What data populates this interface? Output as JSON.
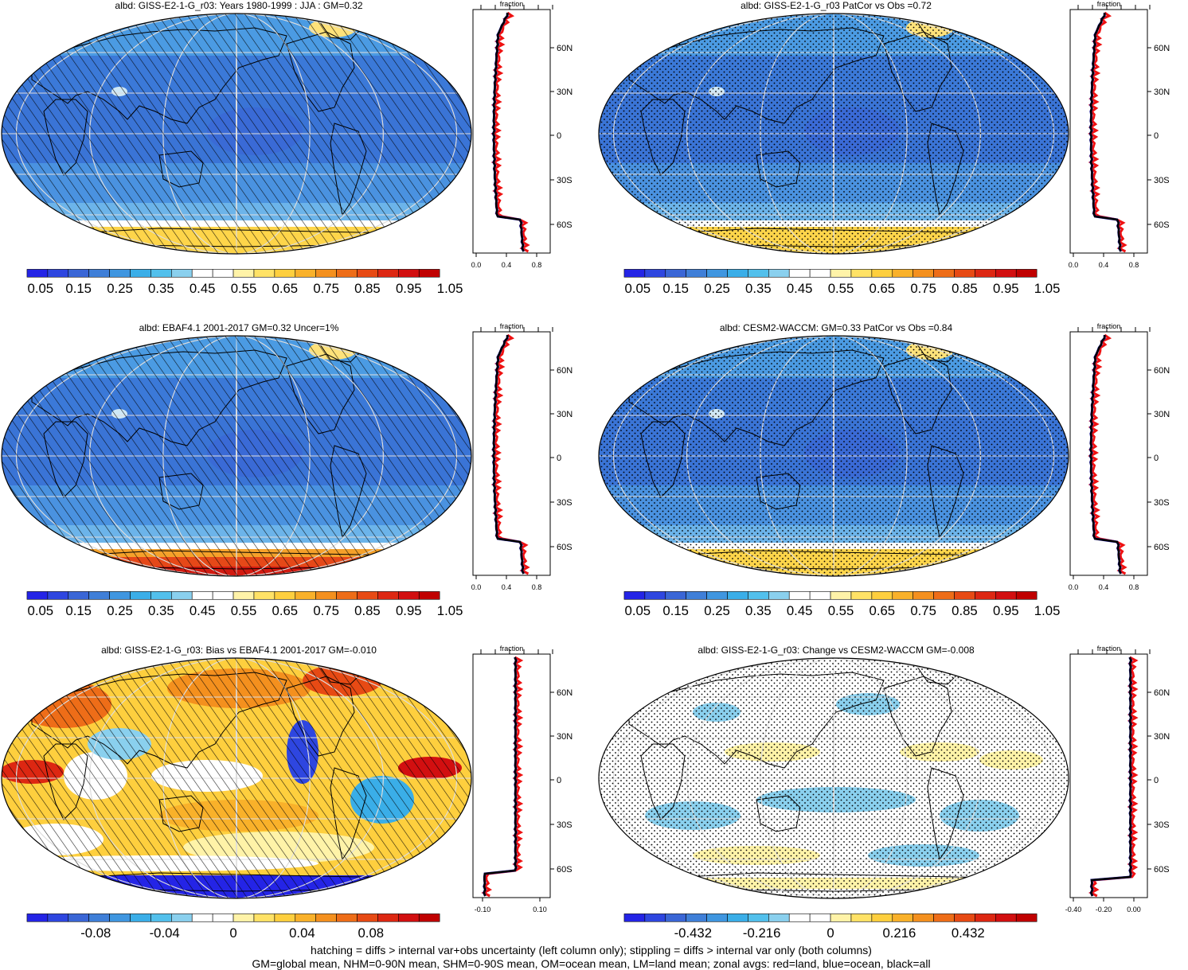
{
  "panels": [
    {
      "title": "albd: GISS-E2-1-G_r03: Years 1980-1999 : JJA : GM=0.32",
      "variant": "model",
      "overlay": "hatch",
      "zonal": {
        "label": "fraction",
        "xticks": [
          "0.0",
          "0.4",
          "0.8"
        ],
        "yticks": [
          "60N",
          "30N",
          "0",
          "30S",
          "60S"
        ]
      },
      "colorbar": {
        "labels": [
          "0.05",
          "0.15",
          "0.25",
          "0.35",
          "0.45",
          "0.55",
          "0.65",
          "0.75",
          "0.85",
          "0.95",
          "1.05"
        ]
      }
    },
    {
      "title": "albd: GISS-E2-1-G_r03 PatCor vs Obs =0.72",
      "variant": "model",
      "overlay": "stipple",
      "zonal": {
        "label": "fraction",
        "xticks": [
          "0.0",
          "0.4",
          "0.8"
        ],
        "yticks": [
          "60N",
          "30N",
          "0",
          "30S",
          "60S"
        ]
      },
      "colorbar": {
        "labels": [
          "0.05",
          "0.15",
          "0.25",
          "0.35",
          "0.45",
          "0.55",
          "0.65",
          "0.75",
          "0.85",
          "0.95",
          "1.05"
        ]
      }
    },
    {
      "title": "albd: EBAF4.1 2001-2017 GM=0.32 Uncer=1%",
      "variant": "obs",
      "overlay": "hatch",
      "zonal": {
        "label": "fraction",
        "xticks": [
          "0.0",
          "0.4",
          "0.8"
        ],
        "yticks": [
          "60N",
          "30N",
          "0",
          "30S",
          "60S"
        ]
      },
      "colorbar": {
        "labels": [
          "0.05",
          "0.15",
          "0.25",
          "0.35",
          "0.45",
          "0.55",
          "0.65",
          "0.75",
          "0.85",
          "0.95",
          "1.05"
        ]
      }
    },
    {
      "title": "albd: CESM2-WACCM: GM=0.33 PatCor vs Obs =0.84",
      "variant": "model",
      "overlay": "stipple",
      "zonal": {
        "label": "fraction",
        "xticks": [
          "0.0",
          "0.4",
          "0.8"
        ],
        "yticks": [
          "60N",
          "30N",
          "0",
          "30S",
          "60S"
        ]
      },
      "colorbar": {
        "labels": [
          "0.05",
          "0.15",
          "0.25",
          "0.35",
          "0.45",
          "0.55",
          "0.65",
          "0.75",
          "0.85",
          "0.95",
          "1.05"
        ]
      }
    },
    {
      "title": "albd: GISS-E2-1-G_r03: Bias vs EBAF4.1 2001-2017 GM=-0.010",
      "variant": "bias",
      "overlay": "hatch",
      "zonal": {
        "label": "fraction",
        "xticks": [
          "-0.10",
          "0.10"
        ],
        "yticks": [
          "60N",
          "30N",
          "0",
          "30S",
          "60S"
        ]
      },
      "colorbar": {
        "labels": [
          "-0.08",
          "-0.04",
          "0",
          "0.04",
          "0.08"
        ]
      }
    },
    {
      "title": "albd: GISS-E2-1-G_r03: Change vs CESM2-WACCM GM=-0.008",
      "variant": "change",
      "overlay": "stipple",
      "zonal": {
        "label": "fraction",
        "xticks": [
          "-0.40",
          "-0.20",
          "0.00"
        ],
        "yticks": [
          "60N",
          "30N",
          "0",
          "30S",
          "60S"
        ]
      },
      "colorbar": {
        "labels": [
          "-0.432",
          "-0.216",
          "0",
          "0.216",
          "0.432"
        ]
      }
    }
  ],
  "footer": {
    "line1": "hatching = diffs > internal var+obs uncertainty (left column only); stippling = diffs > internal var only (both columns)",
    "line2": "GM=global mean, NHM=0-90N mean, SHM=0-90S mean, OM=ocean mean, LM=land mean; zonal avgs: red=land, blue=ocean, black=all"
  },
  "colors": {
    "full_scale": [
      "#2424e6",
      "#2e46e0",
      "#3a66d6",
      "#3f7fd8",
      "#3f96e0",
      "#3aaee8",
      "#52c0ec",
      "#8ad0ee",
      "#ffffff",
      "#ffffff",
      "#fff3a8",
      "#ffe266",
      "#fecf3e",
      "#f9b12a",
      "#f4901e",
      "#ee6d18",
      "#e74a14",
      "#dd2712",
      "#d20f10",
      "#c00000"
    ],
    "diff_scale": [
      "#2424e6",
      "#2e46e0",
      "#3a66d6",
      "#3f7fd8",
      "#3f96e0",
      "#3aaee8",
      "#52c0ec",
      "#8ad0ee",
      "#ffffff",
      "#ffffff",
      "#fff3a8",
      "#ffe266",
      "#fecf3e",
      "#f9b12a",
      "#f4901e",
      "#ee6d18",
      "#e74a14",
      "#dd2712",
      "#d20f10",
      "#c00000"
    ],
    "zonal_land": "#ee1111",
    "zonal_ocean": "#2020cc",
    "zonal_all": "#000000"
  }
}
